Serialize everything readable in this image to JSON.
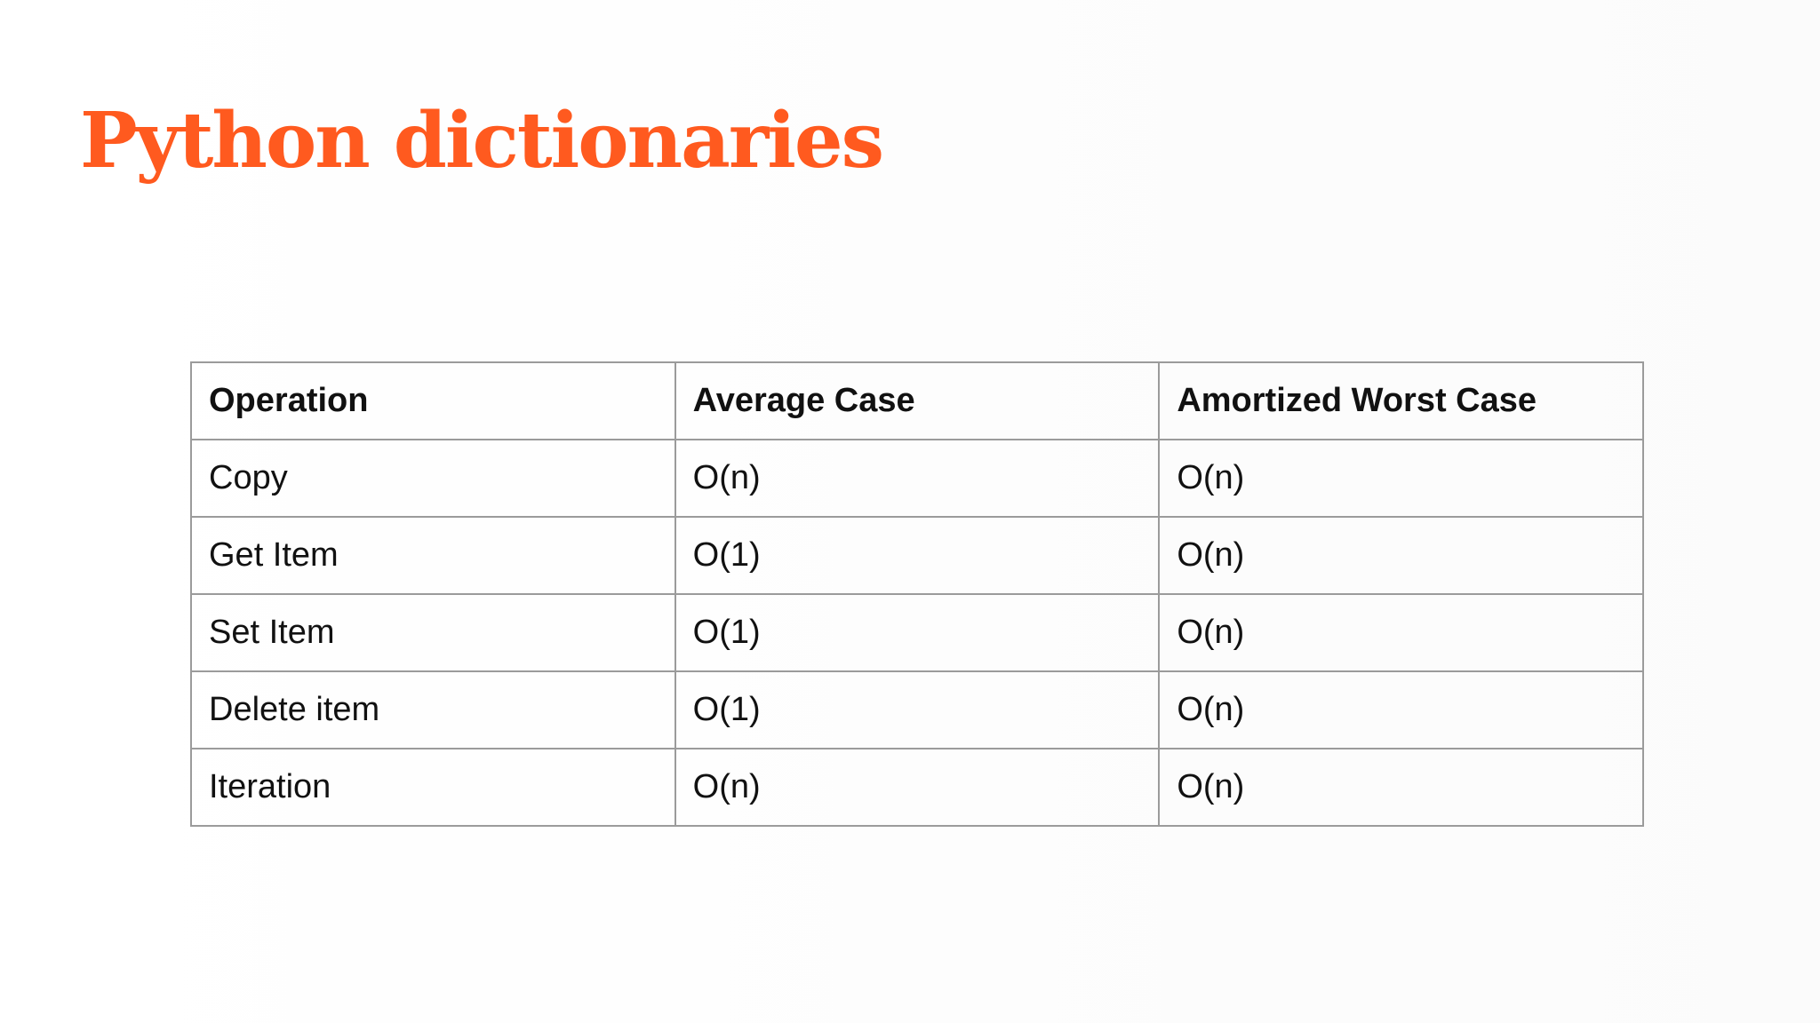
{
  "slide": {
    "title": "Python dictionaries",
    "title_color": "#ff5a1f"
  },
  "table": {
    "headers": [
      "Operation",
      "Average Case",
      "Amortized Worst Case"
    ],
    "rows": [
      [
        "Copy",
        "O(n)",
        "O(n)"
      ],
      [
        "Get Item",
        "O(1)",
        "O(n)"
      ],
      [
        "Set Item",
        "O(1)",
        "O(n)"
      ],
      [
        "Delete item",
        "O(1)",
        "O(n)"
      ],
      [
        "Iteration",
        "O(n)",
        "O(n)"
      ]
    ],
    "border_color": "#9b9b9b"
  }
}
